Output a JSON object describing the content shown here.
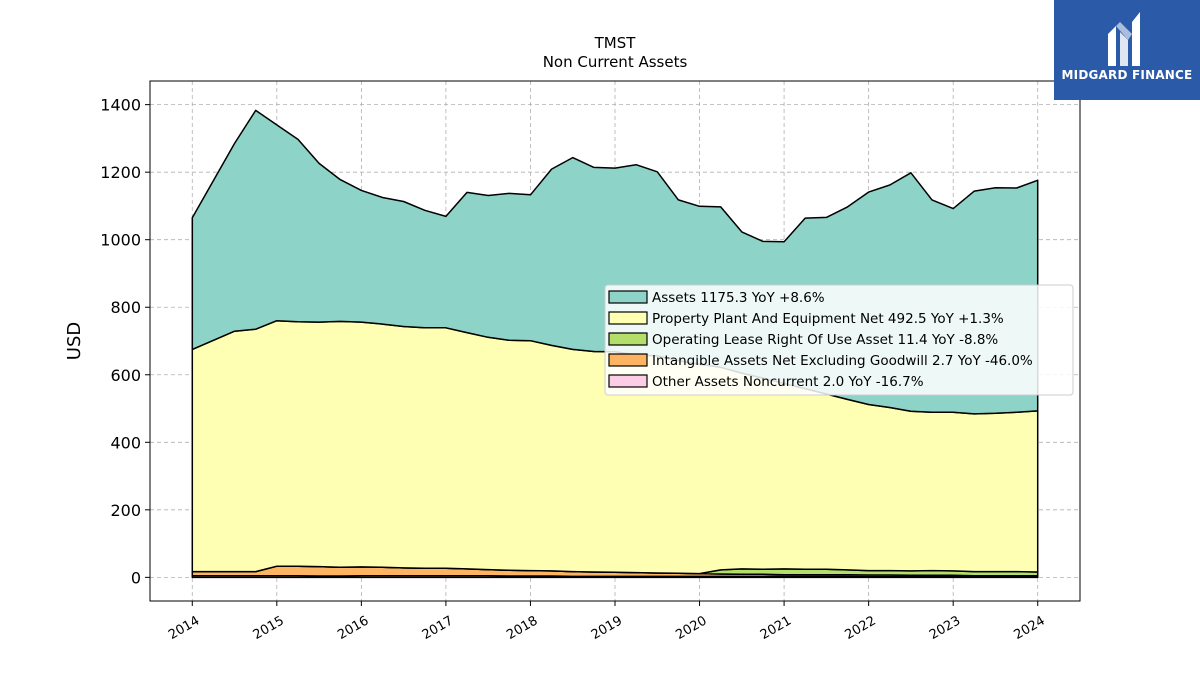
{
  "chart_data": {
    "type": "area",
    "title": "TMST",
    "subtitle": "Non Current  Assets",
    "xlabel": "",
    "ylabel": "USD",
    "xlim": [
      2013.5,
      2024.5
    ],
    "ylim": [
      -70,
      1470
    ],
    "yticks": [
      0,
      200,
      400,
      600,
      800,
      1000,
      1200,
      1400
    ],
    "xticks": [
      "2014",
      "2015",
      "2016",
      "2017",
      "2018",
      "2019",
      "2020",
      "2021",
      "2022",
      "2023",
      "2024"
    ],
    "grid": true,
    "legend_position": "right",
    "x": [
      2014.0,
      2014.5,
      2014.75,
      2015.0,
      2015.25,
      2015.5,
      2015.75,
      2016.0,
      2016.25,
      2016.5,
      2016.75,
      2017.0,
      2017.25,
      2017.5,
      2017.75,
      2018.0,
      2018.25,
      2018.5,
      2018.75,
      2019.0,
      2019.25,
      2019.5,
      2019.75,
      2020.0,
      2020.25,
      2020.5,
      2020.75,
      2021.0,
      2021.25,
      2021.5,
      2021.75,
      2022.0,
      2022.25,
      2022.5,
      2022.75,
      2023.0,
      2023.25,
      2023.5,
      2023.75,
      2024.0
    ],
    "series": [
      {
        "name": "Other Assets Noncurrent",
        "legend": "Other Assets Noncurrent  2.0 YoY -16.7%",
        "color": "#fccde5",
        "values": [
          5,
          5,
          5,
          5,
          5,
          4,
          4,
          5,
          5,
          5,
          5,
          5,
          5,
          5,
          4,
          4,
          4,
          3,
          3,
          3,
          3,
          3,
          3,
          3,
          3,
          3,
          3,
          3,
          3,
          3,
          3,
          2,
          2,
          2,
          2,
          2,
          2,
          2,
          2,
          2
        ]
      },
      {
        "name": "Intangible Assets Net Excluding Goodwill",
        "legend": "Intangible Assets Net Excluding Goodwill  2.7 YoY -46.0%",
        "color": "#fdb462",
        "values": [
          12,
          12,
          12,
          28,
          28,
          28,
          26,
          26,
          25,
          23,
          22,
          22,
          20,
          18,
          17,
          16,
          15,
          14,
          13,
          12,
          11,
          10,
          9,
          8,
          7,
          6,
          6,
          5,
          5,
          5,
          5,
          5,
          5,
          4,
          4,
          4,
          3,
          3,
          3,
          3
        ]
      },
      {
        "name": "Operating Lease Right Of Use Asset",
        "legend": "Operating Lease Right Of Use Asset  11.4 YoY -8.8%",
        "color": "#b3de69",
        "values": [
          0,
          0,
          0,
          0,
          0,
          0,
          0,
          0,
          0,
          0,
          0,
          0,
          0,
          0,
          0,
          0,
          0,
          0,
          0,
          0,
          0,
          0,
          0,
          0,
          12,
          16,
          15,
          17,
          16,
          16,
          14,
          13,
          13,
          13,
          14,
          13,
          12,
          12,
          12,
          11
        ]
      },
      {
        "name": "Property Plant And Equipment Net",
        "legend": "Property Plant And Equipment Net  492.5 YoY +1.3%",
        "color": "#ffffb3",
        "values": [
          658,
          712,
          718,
          727,
          724,
          724,
          728,
          725,
          720,
          715,
          712,
          712,
          700,
          688,
          681,
          681,
          668,
          658,
          653,
          653,
          645,
          643,
          630,
          620,
          600,
          580,
          566,
          549,
          535,
          519,
          505,
          492,
          483,
          473,
          469,
          470,
          467,
          469,
          472,
          477
        ]
      },
      {
        "name": "Assets",
        "legend": "Assets  1175.3 YoY +8.6%",
        "color": "#8dd3c7",
        "values": [
          390,
          556,
          648,
          580,
          540,
          470,
          420,
          390,
          375,
          370,
          348,
          330,
          415,
          420,
          435,
          432,
          522,
          568,
          545,
          544,
          563,
          545,
          476,
          468,
          475,
          418,
          405,
          420,
          505,
          523,
          570,
          629,
          659,
          706,
          629,
          603,
          660,
          668,
          664,
          683
        ]
      }
    ]
  },
  "logo": {
    "text": "MIDGARD FINANCE",
    "icon": "midgard-logo-icon",
    "background": "#2b5aa9"
  }
}
